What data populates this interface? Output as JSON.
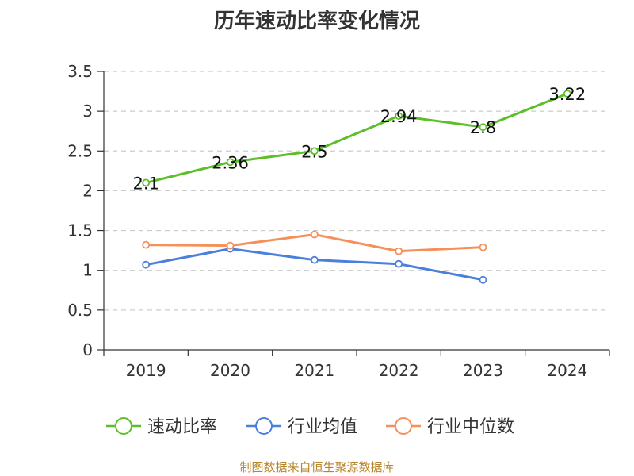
{
  "chart_data": {
    "type": "line",
    "title": "历年速动比率变化情况",
    "categories": [
      "2019",
      "2020",
      "2021",
      "2022",
      "2023",
      "2024"
    ],
    "y_ticks": [
      "0",
      "0.5",
      "1",
      "1.5",
      "2",
      "2.5",
      "3",
      "3.5"
    ],
    "ylim": [
      0,
      3.5
    ],
    "grid": true,
    "legend_position": "bottom",
    "series": [
      {
        "name": "速动比率",
        "color": "#5cbf2a",
        "values": [
          2.1,
          2.36,
          2.5,
          2.94,
          2.8,
          3.22
        ],
        "labels": [
          "2.1",
          "2.36",
          "2.5",
          "2.94",
          "2.8",
          "3.22"
        ]
      },
      {
        "name": "行业均值",
        "color": "#4a7fdc",
        "values": [
          1.07,
          1.27,
          1.13,
          1.08,
          0.88,
          null
        ]
      },
      {
        "name": "行业中位数",
        "color": "#f5905a",
        "values": [
          1.32,
          1.31,
          1.45,
          1.24,
          1.29,
          null
        ]
      }
    ],
    "source": "制图数据来自恒生聚源数据库"
  }
}
